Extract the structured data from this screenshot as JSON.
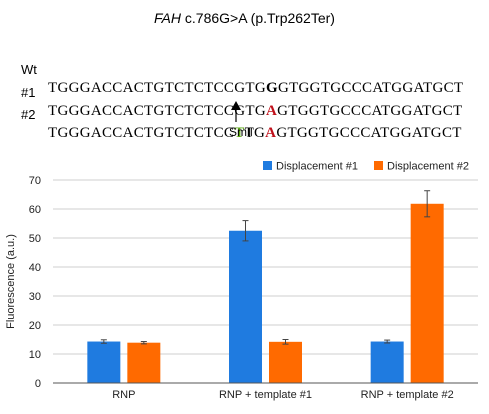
{
  "header": {
    "gene": "FAH",
    "variant": " c.786G>A (p.Trp262Ter)"
  },
  "sequences": [
    {
      "label": "Wt",
      "prefix": "TGGGACCACTGTCTCTCCGTG",
      "mid": "",
      "mutation": "G",
      "suffix": "GTGGTGCCCATGGATGCT",
      "mutation_color": "#000000"
    },
    {
      "label": "#1",
      "prefix": "TGGGACCACTGTCTCTCCGTG",
      "mid": "",
      "mutation": "A",
      "suffix": "GTGGTGCCCATGGATGCT",
      "mutation_color": "#c0111b"
    },
    {
      "label": "#2",
      "prefix": "TGGGACCACTGTCTCTCC",
      "silent": "T",
      "mid": "TG",
      "mutation": "A",
      "suffix": "GTGGTGCCCATGGATGCT",
      "mutation_color": "#c0111b",
      "silent_color": "#5aa514"
    }
  ],
  "site_label": "SmlI",
  "chart_data": {
    "type": "bar",
    "categories": [
      "RNP",
      "RNP + template #1",
      "RNP + template #2"
    ],
    "series": [
      {
        "name": "Displacement #1",
        "color": "#1f7be0",
        "values": [
          14.3,
          52.5,
          14.3
        ],
        "errors": [
          0.6,
          3.5,
          0.5
        ]
      },
      {
        "name": "Displacement #2",
        "color": "#ff6a00",
        "values": [
          13.9,
          14.2,
          61.8
        ],
        "errors": [
          0.4,
          0.8,
          4.5
        ]
      }
    ],
    "ylabel": "Fluorescence (a.u.)",
    "xlabel": "",
    "ylim": [
      0,
      70
    ],
    "yticks": [
      0,
      10,
      20,
      30,
      40,
      50,
      60,
      70
    ],
    "grid": true,
    "legend": "top-right"
  }
}
